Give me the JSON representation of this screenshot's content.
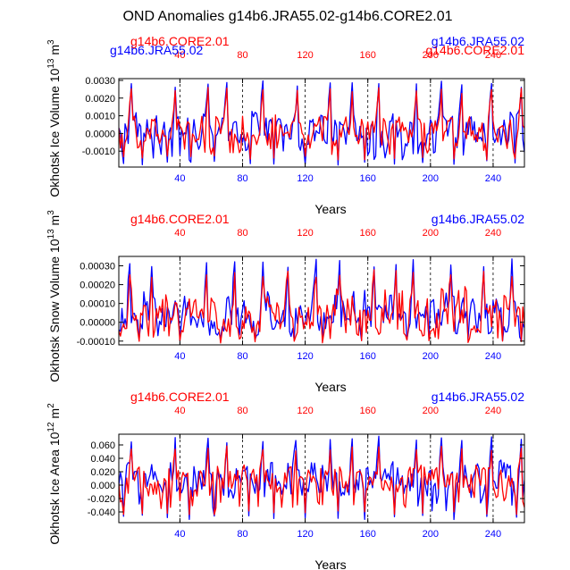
{
  "title": "OND Anomalies g14b6.JRA55.02-g14b6.CORE2.01",
  "colors": {
    "jra": "#0000ff",
    "core": "#ff0000",
    "axis": "#000000",
    "grid": "#000000"
  },
  "chart_data": [
    {
      "type": "line",
      "ylabel": "Okhotsk Ice Volume 10^13 m^3",
      "ylabel_main": "Okhotsk Ice Volume 10",
      "ylabel_exp1": "13",
      "ylabel_unit": " m",
      "ylabel_exp2": "3",
      "xlabel": "Years",
      "xlim": [
        1,
        260
      ],
      "ylim": [
        -0.0019,
        0.0031
      ],
      "yticks": [
        -0.001,
        0.0,
        0.001,
        0.002,
        0.003
      ],
      "ytick_labels": [
        "-0.0010",
        "0.0000",
        "0.0010",
        "0.0020",
        "0.0030"
      ],
      "xticks": [
        40,
        80,
        120,
        160,
        200,
        240
      ],
      "xtick_labels": [
        "40",
        "80",
        "120",
        "160",
        "200",
        "240"
      ],
      "top_xtick_labels": [
        "40",
        "80",
        "120",
        "160",
        "200",
        "240"
      ],
      "vlines": [
        40,
        80,
        120,
        160,
        200,
        240
      ],
      "legend_left": "g14b6.CORE2.01",
      "legend_right": "g14b6.JRA55.02",
      "legend_left_back": "g14b6.JRA55.02",
      "legend_right_back": "g14b6.CORE2.01",
      "overlap": true,
      "peaks": [
        9,
        37,
        58,
        70,
        93,
        115,
        136,
        150,
        167,
        191,
        207,
        220,
        239,
        258
      ],
      "troughs": [
        4,
        16,
        32,
        47,
        62,
        85,
        100,
        120,
        141,
        158,
        177,
        195,
        215,
        236,
        254
      ],
      "series": [
        {
          "name": "g14b6.JRA55.02",
          "color": "#0000ff",
          "peak": 0.003,
          "trough": -0.0018,
          "hi": 0.0013,
          "lo": -0.0015,
          "mid": 0.0001
        },
        {
          "name": "g14b6.CORE2.01",
          "color": "#ff0000",
          "peak": 0.0026,
          "trough": -0.0015,
          "hi": 0.0011,
          "lo": -0.0012,
          "mid": 0.0001
        }
      ]
    },
    {
      "type": "line",
      "ylabel": "Okhotsk Snow Volume 10^13 m^3",
      "ylabel_main": "Okhotsk Snow Volume 10",
      "ylabel_exp1": "13",
      "ylabel_unit": " m",
      "ylabel_exp2": "3",
      "xlabel": "Years",
      "xlim": [
        1,
        260
      ],
      "ylim": [
        -0.00012,
        0.00035
      ],
      "yticks": [
        -0.0001,
        0.0,
        0.0001,
        0.0002,
        0.0003
      ],
      "ytick_labels": [
        "-0.00010",
        "0.00000",
        "0.00010",
        "0.00020",
        "0.00030"
      ],
      "xticks": [
        40,
        80,
        120,
        160,
        200,
        240
      ],
      "xtick_labels": [
        "40",
        "80",
        "120",
        "160",
        "200",
        "240"
      ],
      "top_xtick_labels": [
        "40",
        "80",
        "120",
        "160",
        "200",
        "240"
      ],
      "vlines": [
        40,
        80,
        120,
        160,
        200,
        240
      ],
      "legend_left": "g14b6.CORE2.01",
      "legend_right": "g14b6.JRA55.02",
      "overlap": false,
      "peaks": [
        8,
        22,
        57,
        75,
        93,
        109,
        127,
        142,
        164,
        178,
        189,
        213,
        234,
        252
      ],
      "troughs": [
        14,
        40,
        66,
        88,
        113,
        131,
        156,
        185,
        199,
        224,
        246,
        258
      ],
      "series": [
        {
          "name": "g14b6.JRA55.02",
          "color": "#0000ff",
          "peak": 0.00034,
          "trough": -0.0001,
          "hi": 0.00017,
          "lo": -8e-05,
          "mid": 3e-05
        },
        {
          "name": "g14b6.CORE2.01",
          "color": "#ff0000",
          "peak": 0.00028,
          "trough": -0.00011,
          "hi": 0.00019,
          "lo": -9e-05,
          "mid": 3e-05
        }
      ]
    },
    {
      "type": "line",
      "ylabel": "Okhotsk Ice Area 10^12 m^2",
      "ylabel_main": "Okhotsk Ice Area 10",
      "ylabel_exp1": "12",
      "ylabel_unit": " m",
      "ylabel_exp2": "2",
      "xlabel": "Years",
      "xlim": [
        1,
        260
      ],
      "ylim": [
        -0.056,
        0.076
      ],
      "yticks": [
        -0.04,
        -0.02,
        0.0,
        0.02,
        0.04,
        0.06
      ],
      "ytick_labels": [
        "-0.040",
        "-0.020",
        "0.000",
        "0.020",
        "0.040",
        "0.060"
      ],
      "xticks": [
        40,
        80,
        120,
        160,
        200,
        240
      ],
      "xtick_labels": [
        "40",
        "80",
        "120",
        "160",
        "200",
        "240"
      ],
      "top_xtick_labels": [
        "40",
        "80",
        "120",
        "160",
        "200",
        "240"
      ],
      "vlines": [
        40,
        80,
        120,
        160,
        200,
        240
      ],
      "legend_left": "g14b6.CORE2.01",
      "legend_right": "g14b6.JRA55.02",
      "overlap": false,
      "peaks": [
        9,
        37,
        58,
        70,
        93,
        114,
        136,
        150,
        167,
        191,
        207,
        220,
        239,
        258
      ],
      "troughs": [
        4,
        16,
        32,
        46,
        62,
        84,
        100,
        120,
        141,
        158,
        177,
        195,
        215,
        236,
        255
      ],
      "series": [
        {
          "name": "g14b6.JRA55.02",
          "color": "#0000ff",
          "peak": 0.073,
          "trough": -0.052,
          "hi": 0.035,
          "lo": -0.04,
          "mid": 0.005
        },
        {
          "name": "g14b6.CORE2.01",
          "color": "#ff0000",
          "peak": 0.06,
          "trough": -0.045,
          "hi": 0.03,
          "lo": -0.035,
          "mid": 0.005
        }
      ]
    }
  ]
}
